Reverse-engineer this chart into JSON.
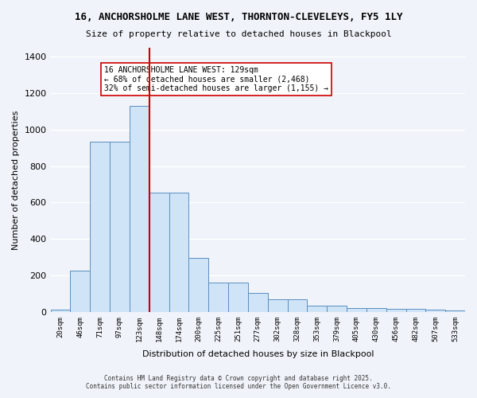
{
  "title_line1": "16, ANCHORSHOLME LANE WEST, THORNTON-CLEVELEYS, FY5 1LY",
  "title_line2": "Size of property relative to detached houses in Blackpool",
  "xlabel": "Distribution of detached houses by size in Blackpool",
  "ylabel": "Number of detached properties",
  "categories": [
    "20sqm",
    "46sqm",
    "71sqm",
    "97sqm",
    "123sqm",
    "148sqm",
    "174sqm",
    "200sqm",
    "225sqm",
    "251sqm",
    "277sqm",
    "302sqm",
    "328sqm",
    "353sqm",
    "379sqm",
    "405sqm",
    "430sqm",
    "456sqm",
    "482sqm",
    "507sqm",
    "533sqm"
  ],
  "values": [
    13,
    225,
    935,
    935,
    1130,
    655,
    655,
    295,
    160,
    160,
    105,
    70,
    70,
    35,
    35,
    20,
    20,
    15,
    15,
    10,
    8
  ],
  "bar_color": "#d0e4f7",
  "bar_edge_color": "#5a8fc0",
  "vline_x": 4,
  "vline_color": "#cc0000",
  "annotation_title": "16 ANCHORSHOLME LANE WEST: 129sqm",
  "annotation_line2": "← 68% of detached houses are smaller (2,468)",
  "annotation_line3": "32% of semi-detached houses are larger (1,155) →",
  "annotation_box_color": "#cc0000",
  "annotation_bg": "#ffffff",
  "background_color": "#f0f4fa",
  "grid_color": "#ffffff",
  "footer_line1": "Contains HM Land Registry data © Crown copyright and database right 2025.",
  "footer_line2": "Contains public sector information licensed under the Open Government Licence v3.0.",
  "ylim": [
    0,
    1450
  ],
  "yticks": [
    0,
    200,
    400,
    600,
    800,
    1000,
    1200,
    1400
  ]
}
